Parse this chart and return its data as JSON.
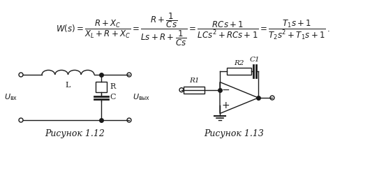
{
  "background_color": "#ffffff",
  "formula_text": "W(s) = \\frac{R + X_C}{X_L + R + X_C} = \\frac{R + \\dfrac{1}{Cs}}{Ls + R + \\dfrac{1}{Cs}} = \\frac{RCs + 1}{LCs^2 + RCs + 1} = \\frac{T_1 s + 1}{T_2 s^2 + T_1 s + 1}\\,.",
  "caption1": "Рисунок 1.12",
  "caption2": "Рисунок 1.13",
  "fig_width": 5.53,
  "fig_height": 2.62,
  "dpi": 100
}
